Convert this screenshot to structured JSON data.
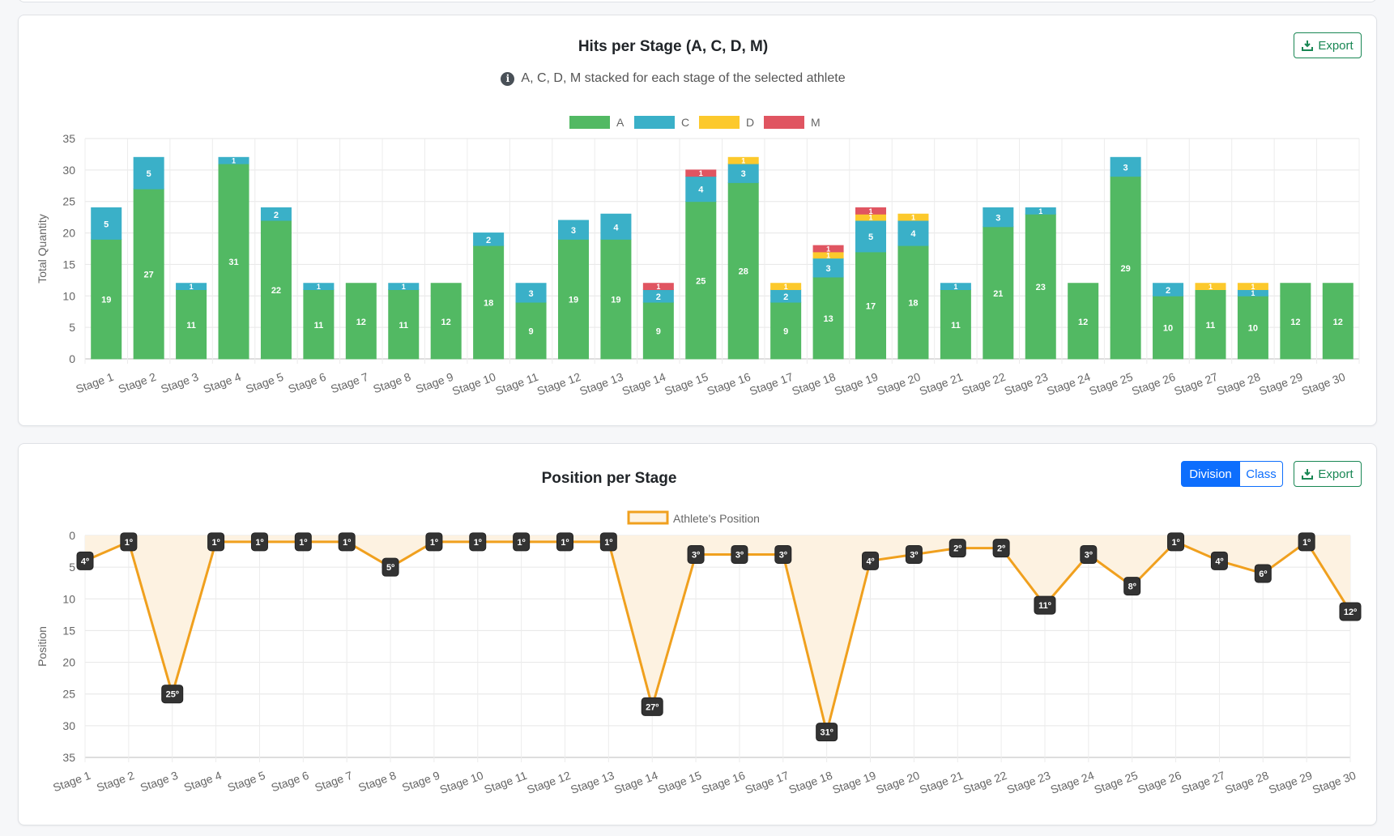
{
  "card1": {
    "title": "Hits per Stage (A, C, D, M)",
    "subtitle": "A, C, D, M stacked for each stage of the selected athlete",
    "export_label": "Export"
  },
  "card2": {
    "title": "Position per Stage",
    "export_label": "Export",
    "toggle": {
      "division": "Division",
      "class": "Class",
      "selected": "Division"
    }
  },
  "chart_data": [
    {
      "type": "bar",
      "stacked": true,
      "categories": [
        "Stage 1",
        "Stage 2",
        "Stage 3",
        "Stage 4",
        "Stage 5",
        "Stage 6",
        "Stage 7",
        "Stage 8",
        "Stage 9",
        "Stage 10",
        "Stage 11",
        "Stage 12",
        "Stage 13",
        "Stage 14",
        "Stage 15",
        "Stage 16",
        "Stage 17",
        "Stage 18",
        "Stage 19",
        "Stage 20",
        "Stage 21",
        "Stage 22",
        "Stage 23",
        "Stage 24",
        "Stage 25",
        "Stage 26",
        "Stage 27",
        "Stage 28",
        "Stage 29",
        "Stage 30"
      ],
      "series": [
        {
          "name": "A",
          "color": "#52b963",
          "values": [
            19,
            27,
            11,
            31,
            22,
            11,
            12,
            11,
            12,
            18,
            9,
            19,
            19,
            9,
            25,
            28,
            9,
            13,
            17,
            18,
            11,
            21,
            23,
            12,
            29,
            10,
            11,
            10,
            12,
            12
          ]
        },
        {
          "name": "C",
          "color": "#3ab0c8",
          "values": [
            5,
            5,
            1,
            1,
            2,
            1,
            0,
            1,
            0,
            2,
            3,
            3,
            4,
            2,
            4,
            3,
            2,
            3,
            5,
            4,
            1,
            3,
            1,
            0,
            3,
            2,
            0,
            1,
            0,
            0
          ]
        },
        {
          "name": "D",
          "color": "#fcc92c",
          "values": [
            0,
            0,
            0,
            0,
            0,
            0,
            0,
            0,
            0,
            0,
            0,
            0,
            0,
            0,
            0,
            1,
            1,
            1,
            1,
            1,
            0,
            0,
            0,
            0,
            0,
            0,
            1,
            1,
            0,
            0
          ]
        },
        {
          "name": "M",
          "color": "#e05561",
          "values": [
            0,
            0,
            0,
            0,
            0,
            0,
            0,
            0,
            0,
            0,
            0,
            0,
            0,
            1,
            1,
            0,
            0,
            1,
            1,
            0,
            0,
            0,
            0,
            0,
            0,
            0,
            0,
            0,
            0,
            0
          ]
        }
      ],
      "ylabel": "Total Quantity",
      "ylim": [
        0,
        35
      ],
      "yticks": [
        0,
        5,
        10,
        15,
        20,
        25,
        30,
        35
      ],
      "legend": "top",
      "grid": true
    },
    {
      "type": "line",
      "categories": [
        "Stage 1",
        "Stage 2",
        "Stage 3",
        "Stage 4",
        "Stage 5",
        "Stage 6",
        "Stage 7",
        "Stage 8",
        "Stage 9",
        "Stage 10",
        "Stage 11",
        "Stage 12",
        "Stage 13",
        "Stage 14",
        "Stage 15",
        "Stage 16",
        "Stage 17",
        "Stage 18",
        "Stage 19",
        "Stage 20",
        "Stage 21",
        "Stage 22",
        "Stage 23",
        "Stage 24",
        "Stage 25",
        "Stage 26",
        "Stage 27",
        "Stage 28",
        "Stage 29",
        "Stage 30"
      ],
      "series": [
        {
          "name": "Athlete's Position",
          "color": "#f0a01e",
          "fill": "#fdf2e1",
          "values": [
            4,
            1,
            25,
            1,
            1,
            1,
            1,
            5,
            1,
            1,
            1,
            1,
            1,
            27,
            3,
            3,
            3,
            31,
            4,
            3,
            2,
            2,
            11,
            3,
            8,
            1,
            4,
            6,
            1,
            12
          ],
          "labels": [
            "4º",
            "1º",
            "25º",
            "1º",
            "1º",
            "1º",
            "1º",
            "5º",
            "1º",
            "1º",
            "1º",
            "1º",
            "1º",
            "27º",
            "3º",
            "3º",
            "3º",
            "31º",
            "4º",
            "3º",
            "2º",
            "2º",
            "11º",
            "3º",
            "8º",
            "1º",
            "4º",
            "6º",
            "1º",
            "12º"
          ]
        }
      ],
      "ylabel": "Position",
      "ylim": [
        0,
        35
      ],
      "y_reversed": true,
      "yticks": [
        0,
        5,
        10,
        15,
        20,
        25,
        30,
        35
      ],
      "legend": "top",
      "grid": true
    }
  ]
}
